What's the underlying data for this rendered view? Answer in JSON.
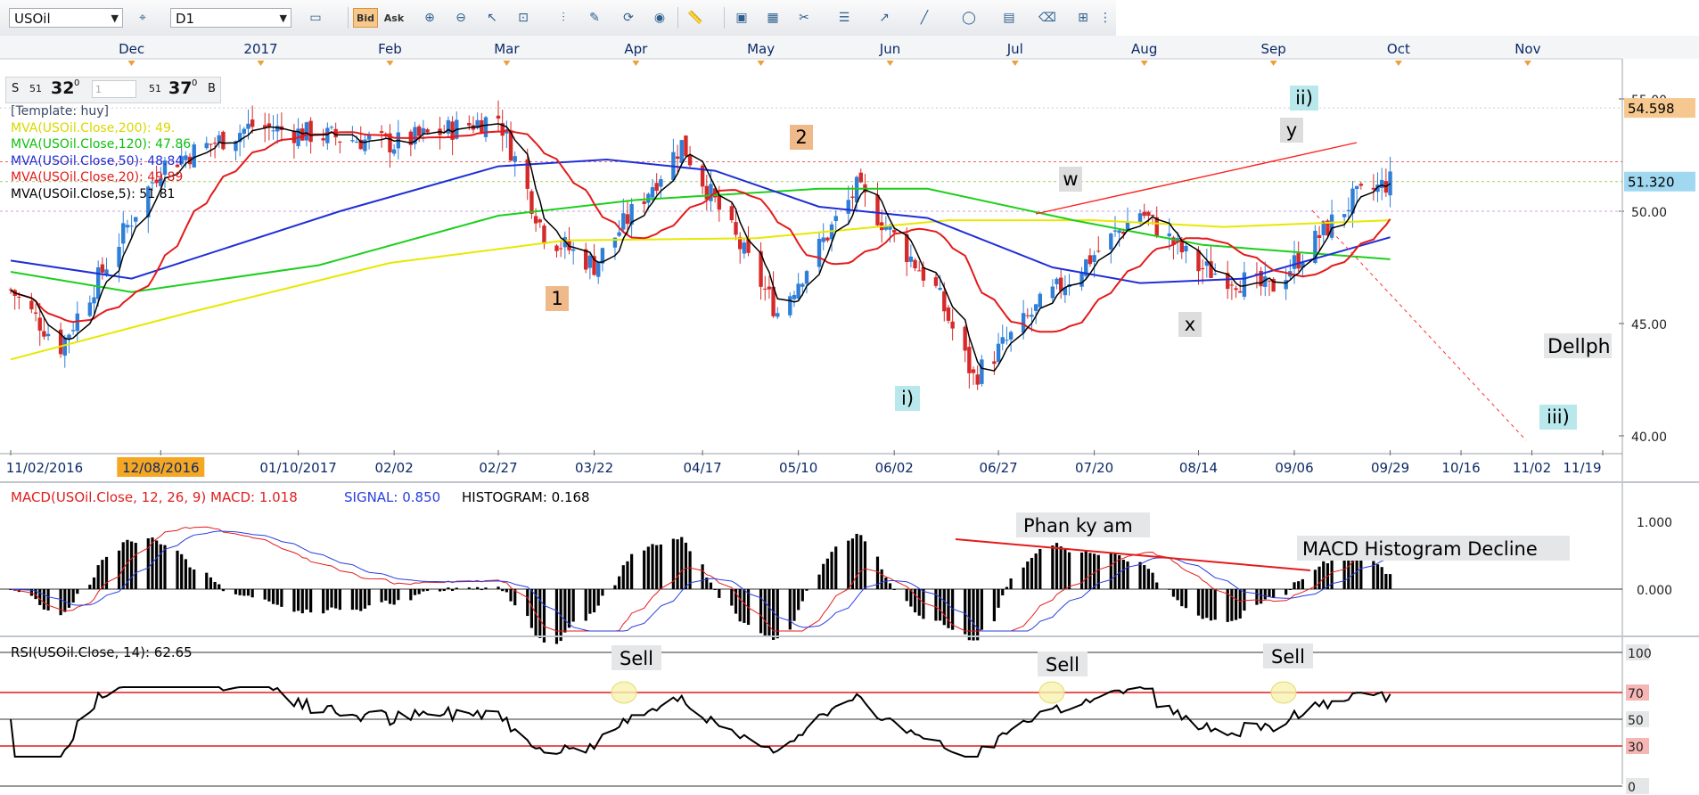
{
  "toolbar": {
    "symbol": "USOil",
    "timeframe": "D1",
    "bid_label": "Bid",
    "ask_label": "Ask",
    "buttons": [
      "chart-type",
      "bid",
      "ask",
      "zoom-in",
      "zoom-out",
      "cursor",
      "zoom-box",
      "measure",
      "draw",
      "lines",
      "globe",
      "ruler",
      "screenshot",
      "calendar",
      "tools",
      "indent",
      "line-width",
      "pen",
      "circle",
      "text",
      "eraser",
      "hierarchy"
    ]
  },
  "top_axis": {
    "months": [
      "Dec",
      "2017",
      "Feb",
      "Mar",
      "Apr",
      "May",
      "Jun",
      "Jul",
      "Aug",
      "Sep",
      "Oct",
      "Nov"
    ]
  },
  "price_panel": {
    "quote": {
      "s_label": "S",
      "s_small": "51",
      "s_big": "32",
      "s_sup": "0",
      "lot": "1",
      "b_small": "51",
      "b_big": "37",
      "b_sup": "0",
      "b_label": "B"
    },
    "legend": {
      "template": "[Template: huy]",
      "ma200": "MVA(USOil.Close,200): 49.",
      "ma120": "MVA(USOil.Close,120): 47.86",
      "ma50": "MVA(USOil.Close,50): 48.84",
      "ma20": "MVA(USOil.Close,20): 49.89",
      "ma5": "MVA(USOil.Close,5): 51.81"
    },
    "price_tags": {
      "top": "54.598",
      "current": "51.320"
    },
    "y_ticks": [
      "55.00",
      "50.00",
      "45.00",
      "40.00"
    ],
    "date_labels": [
      "11/02/2016",
      "12/08/2016",
      "01/10/2017",
      "02/02",
      "02/27",
      "03/22",
      "04/17",
      "05/10",
      "06/02",
      "06/27",
      "07/20",
      "08/14",
      "09/06",
      "09/29",
      "10/16",
      "11/02",
      "11/19"
    ],
    "wave_labels": {
      "w1": "1",
      "w2": "2",
      "wi": "i)",
      "wii": "ii)",
      "wiii": "iii)",
      "ww": "w",
      "wx": "x",
      "wy": "y"
    },
    "annotation": "Dellph"
  },
  "macd_panel": {
    "title_red": "MACD(USOil.Close, 12, 26, 9)  MACD: 1.018",
    "title_signal": "SIGNAL: 0.850",
    "title_hist": "HISTOGRAM: 0.168",
    "y_ticks": [
      "1.000",
      "0.000"
    ],
    "annotation_div": "Phan ky am",
    "annotation_decline": "MACD Histogram Decline"
  },
  "rsi_panel": {
    "title": "RSI(USOil.Close, 14): 62.65",
    "y_ticks": [
      "100",
      "70",
      "50",
      "30",
      "0"
    ],
    "sell_labels": [
      "Sell",
      "Sell",
      "Sell"
    ]
  },
  "colors": {
    "ma200": "#e8e800",
    "ma120": "#1ccf1c",
    "ma50": "#1f2fd6",
    "ma20": "#e41b1b",
    "ma5": "#000000",
    "bull": "#2f7fd8",
    "bear": "#d62a2a",
    "signal": "#2a3ee0"
  },
  "chart_data": {
    "type": "line",
    "title": "USOil D1",
    "x_range": [
      "2016-11-02",
      "2017-11-19"
    ],
    "ylim": [
      40,
      56
    ],
    "series": [
      {
        "name": "USOil Close",
        "x": [
          "2016-11-02",
          "2016-11-14",
          "2016-12-08",
          "2016-12-30",
          "2017-01-10",
          "2017-02-02",
          "2017-02-27",
          "2017-03-10",
          "2017-03-22",
          "2017-04-12",
          "2017-05-05",
          "2017-05-24",
          "2017-06-12",
          "2017-06-21",
          "2017-07-07",
          "2017-07-31",
          "2017-08-14",
          "2017-08-31",
          "2017-09-20",
          "2017-09-29"
        ],
        "values": [
          46.5,
          44.0,
          52.0,
          53.8,
          53.5,
          53.0,
          54.2,
          49.0,
          47.6,
          53.0,
          45.5,
          51.0,
          46.5,
          42.6,
          45.8,
          50.0,
          47.5,
          46.5,
          50.5,
          51.32
        ]
      },
      {
        "name": "MVA(USOil.Close,200)",
        "value": 49.5
      },
      {
        "name": "MVA(USOil.Close,120)",
        "value": 47.86
      },
      {
        "name": "MVA(USOil.Close,50)",
        "value": 48.84
      },
      {
        "name": "MVA(USOil.Close,20)",
        "value": 49.89
      },
      {
        "name": "MVA(USOil.Close,5)",
        "value": 51.81
      }
    ],
    "indicators": {
      "MACD": 1.018,
      "SIGNAL": 0.85,
      "HISTOGRAM": 0.168,
      "RSI": 62.65
    },
    "annotations": [
      "1",
      "2",
      "i)",
      "ii)",
      "iii)",
      "w",
      "x",
      "y",
      "Phan ky am",
      "MACD Histogram Decline",
      "Sell",
      "Sell",
      "Sell",
      "Dellph"
    ]
  }
}
